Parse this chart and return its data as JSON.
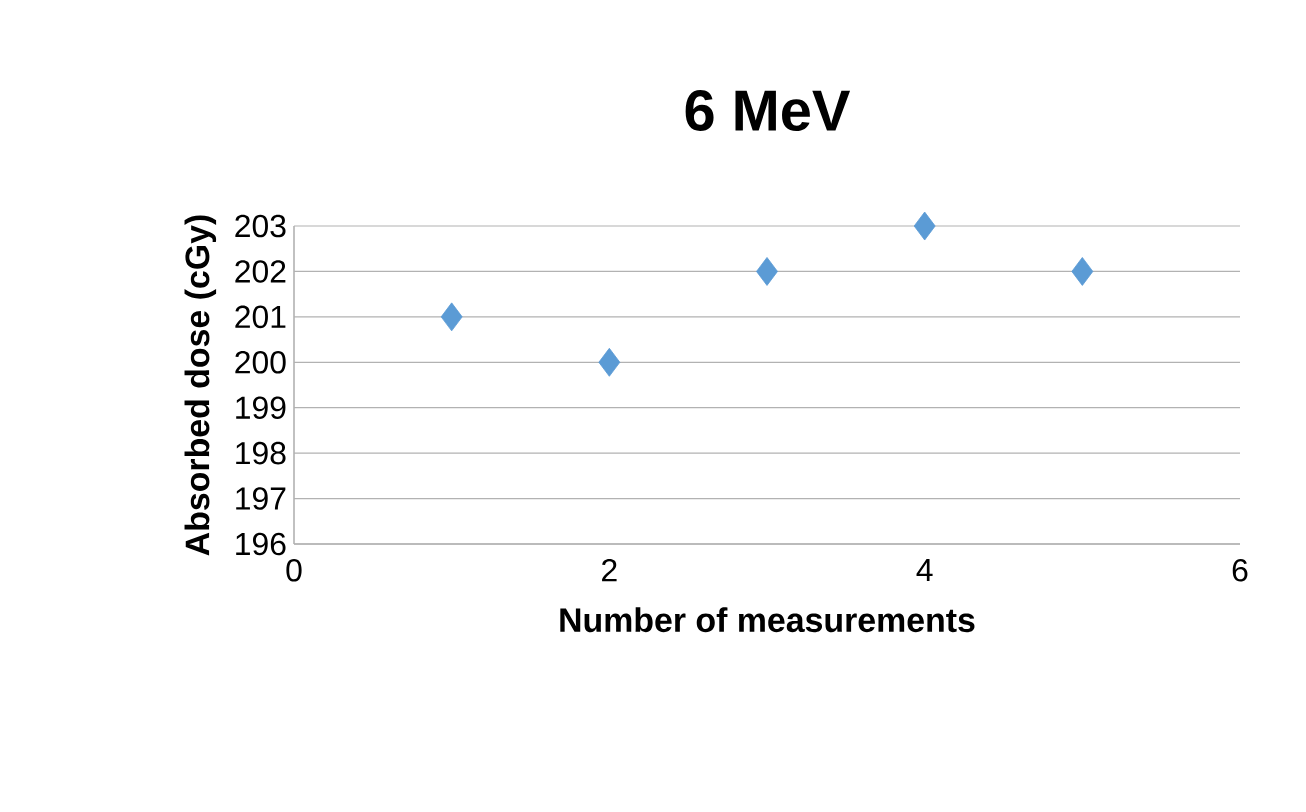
{
  "chart_data": {
    "type": "scatter",
    "title": "6 MeV",
    "xlabel": "Number of measurements",
    "ylabel": "Absorbed dose (cGy)",
    "x": [
      1,
      2,
      3,
      4,
      5
    ],
    "values": [
      201,
      200,
      202,
      203,
      202
    ],
    "color": "#5b9bd5",
    "marker": "diamond",
    "xlim": [
      0,
      6
    ],
    "ylim": [
      196,
      203
    ],
    "xticks": [
      0,
      2,
      4,
      6
    ],
    "yticks": [
      196,
      197,
      198,
      199,
      200,
      201,
      202,
      203
    ],
    "grid": "y"
  }
}
